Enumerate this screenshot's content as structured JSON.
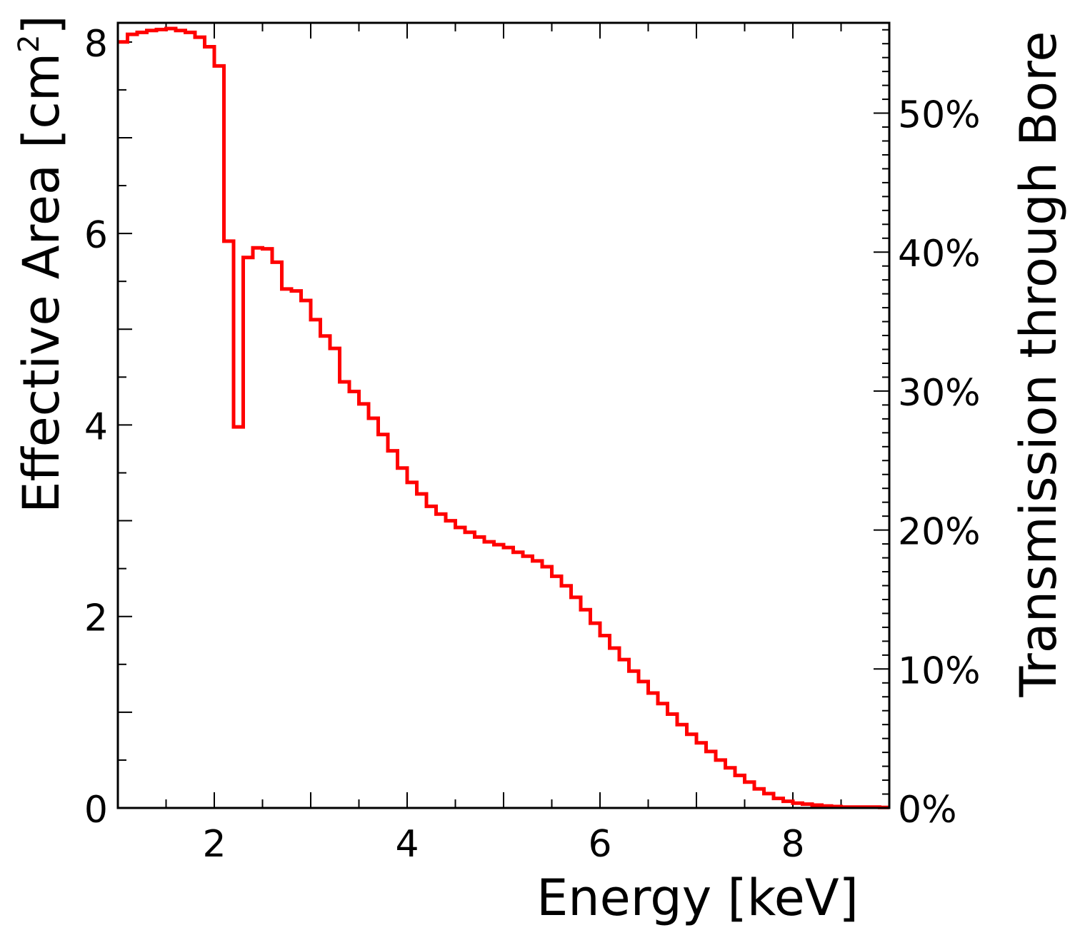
{
  "chart_data": {
    "type": "step-line",
    "xlabel": "Energy [keV]",
    "ylabel": "Effective Area [cm",
    "ylabel_sup": "2",
    "ylabel_end": "]",
    "y2label": "Transmission through Bore",
    "xlim": [
      1,
      9
    ],
    "ylim": [
      0,
      8.2
    ],
    "y2lim": [
      0,
      0.565
    ],
    "x_ticks": [
      2,
      4,
      6,
      8
    ],
    "x_tick_labels": [
      "2",
      "4",
      "6",
      "8"
    ],
    "y_ticks": [
      0,
      2,
      4,
      6,
      8
    ],
    "y_tick_labels": [
      "0",
      "2",
      "4",
      "6",
      "8"
    ],
    "y2_ticks": [
      0,
      0.1,
      0.2,
      0.3,
      0.4,
      0.5
    ],
    "y2_tick_labels": [
      "0%",
      "10%",
      "20%",
      "30%",
      "40%",
      "50%"
    ],
    "series": [
      {
        "name": "Effective Area",
        "color": "#ff0000",
        "bin_width": 0.1,
        "bin_start": 1.0,
        "values": [
          8.0,
          8.08,
          8.1,
          8.12,
          8.13,
          8.14,
          8.12,
          8.1,
          8.05,
          7.95,
          7.75,
          5.92,
          3.98,
          5.75,
          5.85,
          5.84,
          5.7,
          5.42,
          5.4,
          5.3,
          5.1,
          4.93,
          4.8,
          4.45,
          4.35,
          4.22,
          4.07,
          3.9,
          3.73,
          3.55,
          3.4,
          3.28,
          3.15,
          3.07,
          3.0,
          2.93,
          2.88,
          2.83,
          2.78,
          2.75,
          2.72,
          2.67,
          2.63,
          2.58,
          2.52,
          2.42,
          2.32,
          2.2,
          2.07,
          1.93,
          1.8,
          1.67,
          1.55,
          1.43,
          1.32,
          1.2,
          1.09,
          0.98,
          0.87,
          0.77,
          0.68,
          0.59,
          0.5,
          0.42,
          0.34,
          0.27,
          0.2,
          0.15,
          0.1,
          0.07,
          0.05,
          0.04,
          0.03,
          0.02,
          0.015,
          0.01,
          0.01,
          0.01,
          0.01,
          0.005
        ]
      }
    ]
  }
}
